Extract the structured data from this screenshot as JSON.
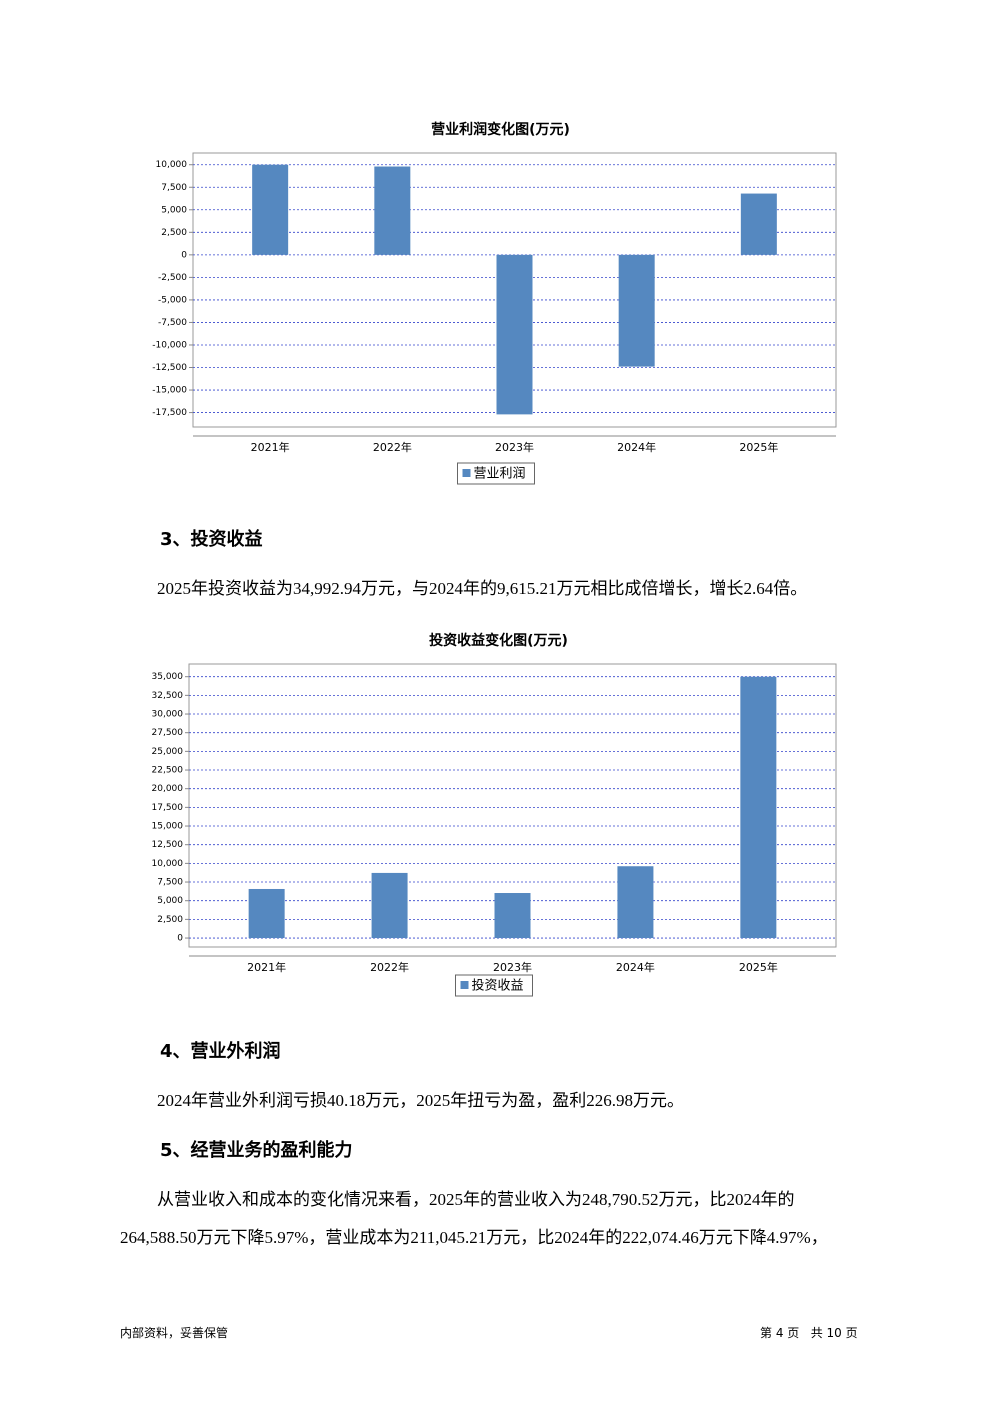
{
  "chart_data": [
    {
      "type": "bar",
      "title": "营业利润变化图(万元)",
      "categories": [
        "2021年",
        "2022年",
        "2023年",
        "2024年",
        "2025年"
      ],
      "series": [
        {
          "name": "营业利润",
          "color": "#5588c0",
          "values": [
            10000,
            9800,
            -17700,
            -12400,
            6800
          ]
        }
      ],
      "ylim": [
        -19100,
        11300
      ],
      "yticks": [
        {
          "value": 10000,
          "label": "10,000"
        },
        {
          "value": 7500,
          "label": "7,500"
        },
        {
          "value": 5000,
          "label": "5,000"
        },
        {
          "value": 2500,
          "label": "2,500"
        },
        0,
        {
          "value": -2500,
          "label": "-2,500"
        },
        {
          "value": -5000,
          "label": "-5,000"
        },
        {
          "value": -7500,
          "label": "-7,500"
        },
        {
          "value": -10000,
          "label": "-10,000"
        },
        {
          "value": -12500,
          "label": "-12,500"
        },
        {
          "value": -15000,
          "label": "-15,000"
        },
        {
          "value": -17500,
          "label": "-17,500"
        }
      ],
      "grid": true
    },
    {
      "type": "bar",
      "title": "投资收益变化图(万元)",
      "categories": [
        "2021年",
        "2022年",
        "2023年",
        "2024年",
        "2025年"
      ],
      "series": [
        {
          "name": "投资收益",
          "color": "#5588c0",
          "values": [
            6570,
            8720,
            6030,
            9615.21,
            34992.94
          ]
        }
      ],
      "ylim": [
        -1200,
        36700
      ],
      "yticks": [
        0,
        {
          "value": 2500,
          "label": "2,500"
        },
        {
          "value": 5000,
          "label": "5,000"
        },
        {
          "value": 7500,
          "label": "7,500"
        },
        {
          "value": 10000,
          "label": "10,000"
        },
        {
          "value": 12500,
          "label": "12,500"
        },
        {
          "value": 15000,
          "label": "15,000"
        },
        {
          "value": 17500,
          "label": "17,500"
        },
        {
          "value": 20000,
          "label": "20,000"
        },
        {
          "value": 22500,
          "label": "22,500"
        },
        {
          "value": 25000,
          "label": "25,000"
        },
        {
          "value": 27500,
          "label": "27,500"
        },
        {
          "value": 30000,
          "label": "30,000"
        },
        {
          "value": 32500,
          "label": "32,500"
        },
        {
          "value": 35000,
          "label": "35,000"
        }
      ],
      "grid": true
    }
  ],
  "sections": [
    {
      "heading": "3、投资收益",
      "lines": [
        "2025年投资收益为34,992.94万元，与2024年的9,615.21万元相比成倍增长，增长2.64倍。"
      ]
    },
    {
      "heading": "4、营业外利润",
      "lines": [
        "2024年营业外利润亏损40.18万元，2025年扭亏为盈，盈利226.98万元。"
      ]
    },
    {
      "heading": "5、经营业务的盈利能力",
      "lines": [
        "从营业收入和成本的变化情况来看，2025年的营业收入为248,790.52万元，比2024年的",
        "264,588.50万元下降5.97%，营业成本为211,045.21万元，比2024年的222,074.46万元下降4.97%，"
      ]
    }
  ],
  "footer": {
    "left": "内部资料，妥善保管",
    "right": "第 4 页   共 10 页"
  }
}
